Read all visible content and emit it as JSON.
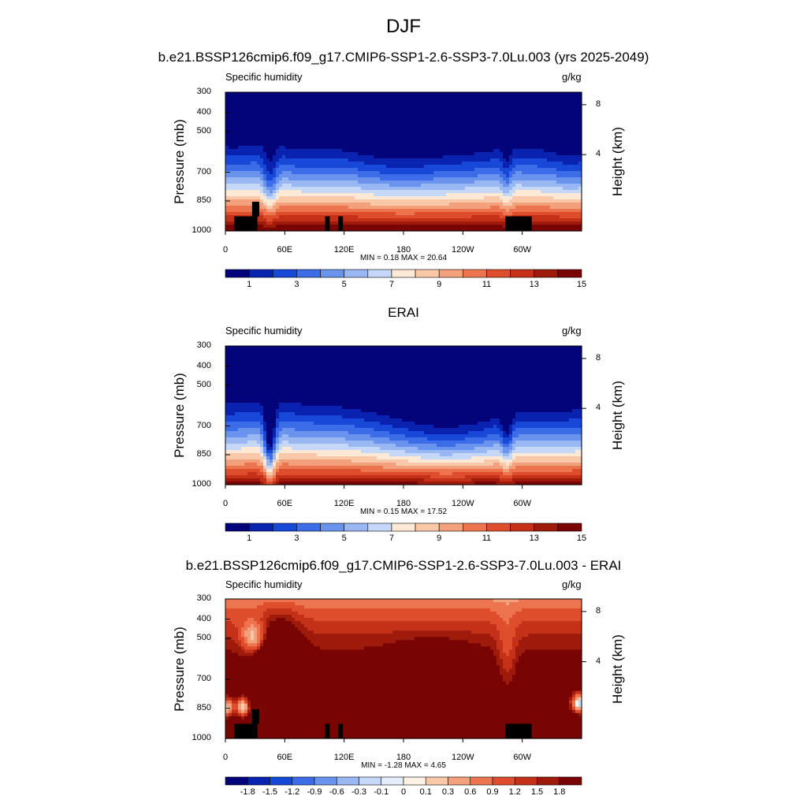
{
  "title": "DJF",
  "case_title": "b.e21.BSSP126cmip6.f09_g17.CMIP6-SSP1-2.6-SSP3-7.0Lu.003 (yrs 2025-2049)",
  "chart_data": [
    {
      "type": "heatmap",
      "panel_title": "",
      "variable": "Specific humidity",
      "units": "g/kg",
      "ylabel": "Pressure (mb)",
      "ylabel_right": "Height (km)",
      "y_ticks": [
        "300",
        "400",
        "500",
        "700",
        "850",
        "1000"
      ],
      "y_right_ticks": [
        "8",
        "4"
      ],
      "x_ticks": [
        "0",
        "60E",
        "120E",
        "180",
        "120W",
        "60W"
      ],
      "stats": "MIN =   0.18  MAX =  20.64",
      "colorbar_labels": [
        "1",
        "3",
        "5",
        "7",
        "9",
        "11",
        "13",
        "15"
      ],
      "colorbar_colors": [
        "#04047a",
        "#0a22b0",
        "#1848d8",
        "#3c6ce8",
        "#6a93ee",
        "#99b7f3",
        "#c6d8f8",
        "#fde9d6",
        "#f9c8a8",
        "#f3a07c",
        "#ec7550",
        "#de4e2c",
        "#c43018",
        "#9e1a0a",
        "#780404"
      ],
      "ylim": [
        300,
        1000
      ]
    },
    {
      "type": "heatmap",
      "panel_title": "ERAI",
      "variable": "Specific humidity",
      "units": "g/kg",
      "ylabel": "Pressure (mb)",
      "ylabel_right": "Height (km)",
      "y_ticks": [
        "300",
        "400",
        "500",
        "700",
        "850",
        "1000"
      ],
      "y_right_ticks": [
        "8",
        "4"
      ],
      "x_ticks": [
        "0",
        "60E",
        "120E",
        "180",
        "120W",
        "60W"
      ],
      "stats": "MIN =   0.15  MAX =  17.52",
      "colorbar_labels": [
        "1",
        "3",
        "5",
        "7",
        "9",
        "11",
        "13",
        "15"
      ],
      "colorbar_colors": [
        "#04047a",
        "#0a22b0",
        "#1848d8",
        "#3c6ce8",
        "#6a93ee",
        "#99b7f3",
        "#c6d8f8",
        "#fde9d6",
        "#f9c8a8",
        "#f3a07c",
        "#ec7550",
        "#de4e2c",
        "#c43018",
        "#9e1a0a",
        "#780404"
      ],
      "ylim": [
        300,
        1000
      ]
    },
    {
      "type": "heatmap",
      "panel_title": "b.e21.BSSP126cmip6.f09_g17.CMIP6-SSP1-2.6-SSP3-7.0Lu.003 - ERAI",
      "variable": "Specific humidity",
      "units": "g/kg",
      "ylabel": "Pressure (mb)",
      "ylabel_right": "Height (km)",
      "y_ticks": [
        "300",
        "400",
        "500",
        "700",
        "850",
        "1000"
      ],
      "y_right_ticks": [
        "8",
        "4"
      ],
      "x_ticks": [
        "0",
        "60E",
        "120E",
        "180",
        "120W",
        "60W"
      ],
      "stats": "MIN =  -1.28  MAX =   4.65",
      "colorbar_labels": [
        "-1.8",
        "-1.5",
        "-1.2",
        "-0.9",
        "-0.6",
        "-0.3",
        "-0.1",
        "0",
        "0.1",
        "0.3",
        "0.6",
        "0.9",
        "1.2",
        "1.5",
        "1.8"
      ],
      "colorbar_colors": [
        "#04047a",
        "#0a22b0",
        "#1848d8",
        "#3c6ce8",
        "#6a93ee",
        "#99b7f3",
        "#c6d8f8",
        "#e4eefa",
        "#fdf1e4",
        "#f9c8a8",
        "#f3a07c",
        "#ec7550",
        "#de4e2c",
        "#c43018",
        "#9e1a0a",
        "#780404"
      ],
      "ylim": [
        300,
        1000
      ]
    }
  ]
}
